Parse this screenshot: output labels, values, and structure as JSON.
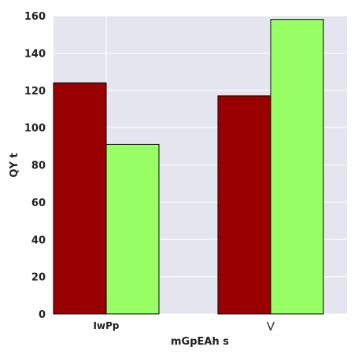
{
  "chart_data": {
    "type": "bar",
    "title": "",
    "xlabel": "mGpEAh s",
    "ylabel": "QY t",
    "categories": [
      "IwPp",
      "V"
    ],
    "series": [
      {
        "values": [
          124,
          117
        ],
        "color": "#990000"
      },
      {
        "values": [
          91,
          158
        ],
        "color": "#99ff66"
      }
    ],
    "ylim": [
      0,
      160
    ],
    "yticks": [
      0,
      20,
      40,
      60,
      80,
      100,
      120,
      140,
      160
    ],
    "grid": true,
    "background": "#e5e5ef",
    "grid_color": "#ffffff",
    "legend": "none"
  }
}
